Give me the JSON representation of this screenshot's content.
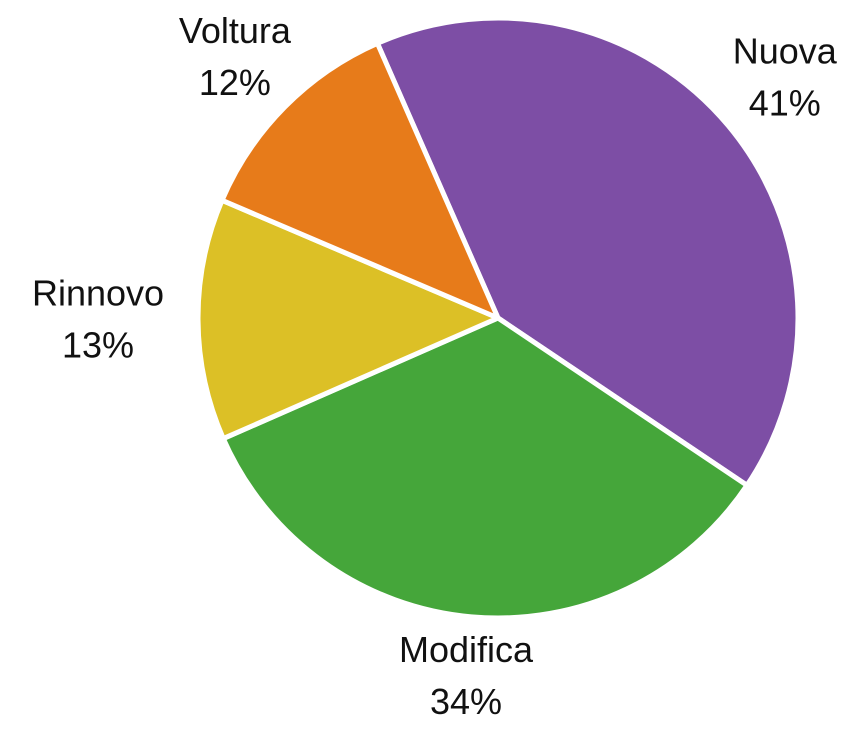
{
  "chart_data": {
    "type": "pie",
    "categories": [
      "Nuova",
      "Modifica",
      "Rinnovo",
      "Voltura"
    ],
    "values": [
      41,
      34,
      13,
      12
    ],
    "value_labels": [
      "41%",
      "34%",
      "13%",
      "12%"
    ],
    "colors": [
      "#7d4ea5",
      "#45a63a",
      "#dcc026",
      "#e77b1a"
    ]
  }
}
